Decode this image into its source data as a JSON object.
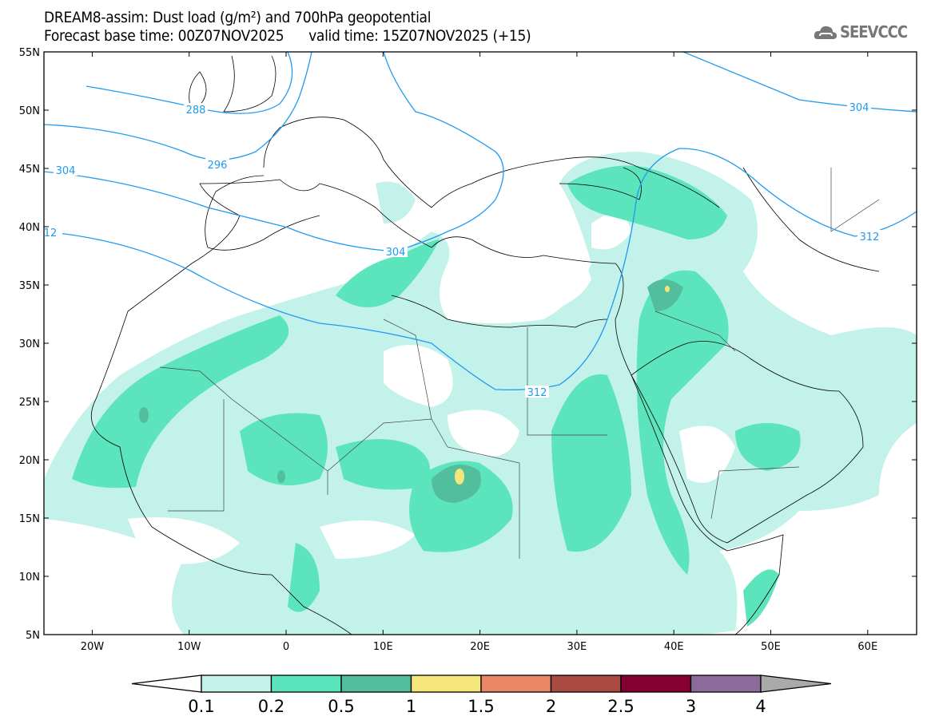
{
  "header": {
    "title": "DREAM8-assim: Dust load (g/m²) and 700hPa geopotential",
    "subtitle": "Forecast base time: 00Z07NOV2025      valid time: 15Z07NOV2025 (+15)",
    "logo": "SEEVCCC"
  },
  "map": {
    "lat_labels": [
      "55N",
      "50N",
      "45N",
      "40N",
      "35N",
      "30N",
      "25N",
      "20N",
      "15N",
      "10N",
      "5N"
    ],
    "lat_values": [
      55,
      50,
      45,
      40,
      35,
      30,
      25,
      20,
      15,
      10,
      5
    ],
    "lon_labels": [
      "20W",
      "10W",
      "0",
      "10E",
      "20E",
      "30E",
      "40E",
      "50E",
      "60E"
    ],
    "lon_values": [
      -20,
      -10,
      0,
      10,
      20,
      30,
      40,
      50,
      60
    ],
    "contour_labels": [
      "288",
      "296",
      "304",
      "304",
      "304",
      "312",
      "312",
      "12"
    ],
    "contour_color": "#1e9bf0"
  },
  "legend": {
    "labels": [
      "0.1",
      "0.2",
      "0.5",
      "1",
      "1.5",
      "2",
      "2.5",
      "3",
      "4"
    ],
    "colors": [
      "#c3f2ea",
      "#5ce5bc",
      "#52be9c",
      "#f5e67a",
      "#ea8766",
      "#a94a40",
      "#840030",
      "#8c6a9a"
    ],
    "under_color": "#ffffff",
    "over_color": "#aaaaaa"
  }
}
